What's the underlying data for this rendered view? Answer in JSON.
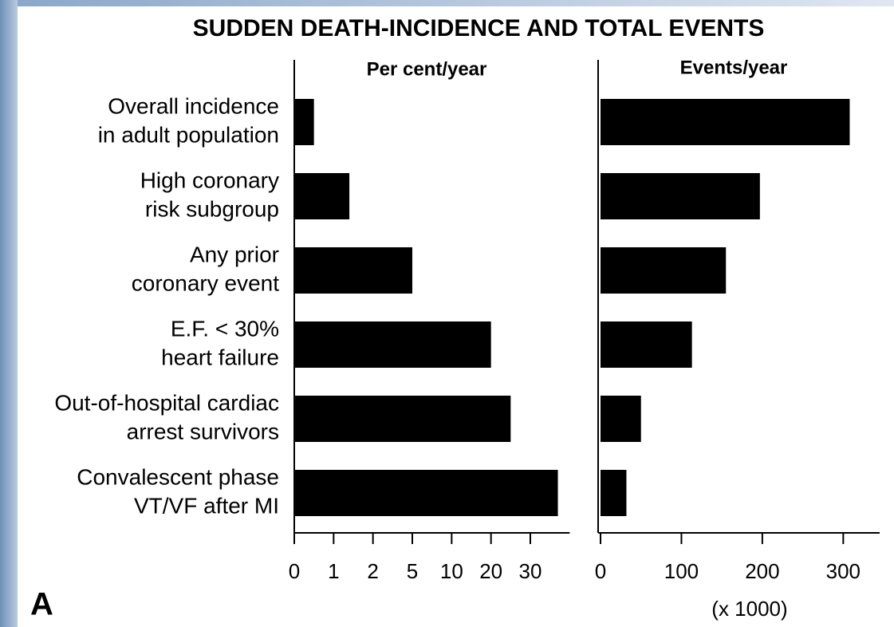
{
  "chart_data": [
    {
      "type": "bar",
      "orientation": "horizontal",
      "title": "SUDDEN DEATH-INCIDENCE AND TOTAL EVENTS",
      "panel_label": "A",
      "subtitle": "Per cent/year",
      "categories": [
        [
          "Overall incidence",
          "in adult population"
        ],
        [
          "High coronary",
          "risk subgroup"
        ],
        [
          "Any prior",
          "coronary event"
        ],
        [
          "E.F. < 30%",
          "heart failure"
        ],
        [
          "Out-of-hospital cardiac",
          "arrest survivors"
        ],
        [
          "Convalescent phase",
          "VT/VF after MI"
        ]
      ],
      "values": [
        0.5,
        1.4,
        5,
        20,
        25,
        37
      ],
      "color": "#000000",
      "xscale": "tick-spaced",
      "xlim": [
        0,
        40
      ],
      "xticks": [
        0,
        1,
        2,
        5,
        10,
        20,
        30
      ]
    },
    {
      "type": "bar",
      "orientation": "horizontal",
      "subtitle": "Events/year",
      "xlabel": "(x 1000)",
      "values": [
        308,
        197,
        155,
        113,
        50,
        32
      ],
      "color": "#000000",
      "xscale": "linear",
      "xlim": [
        0,
        345
      ],
      "xticks": [
        0,
        100,
        200,
        300
      ]
    }
  ]
}
